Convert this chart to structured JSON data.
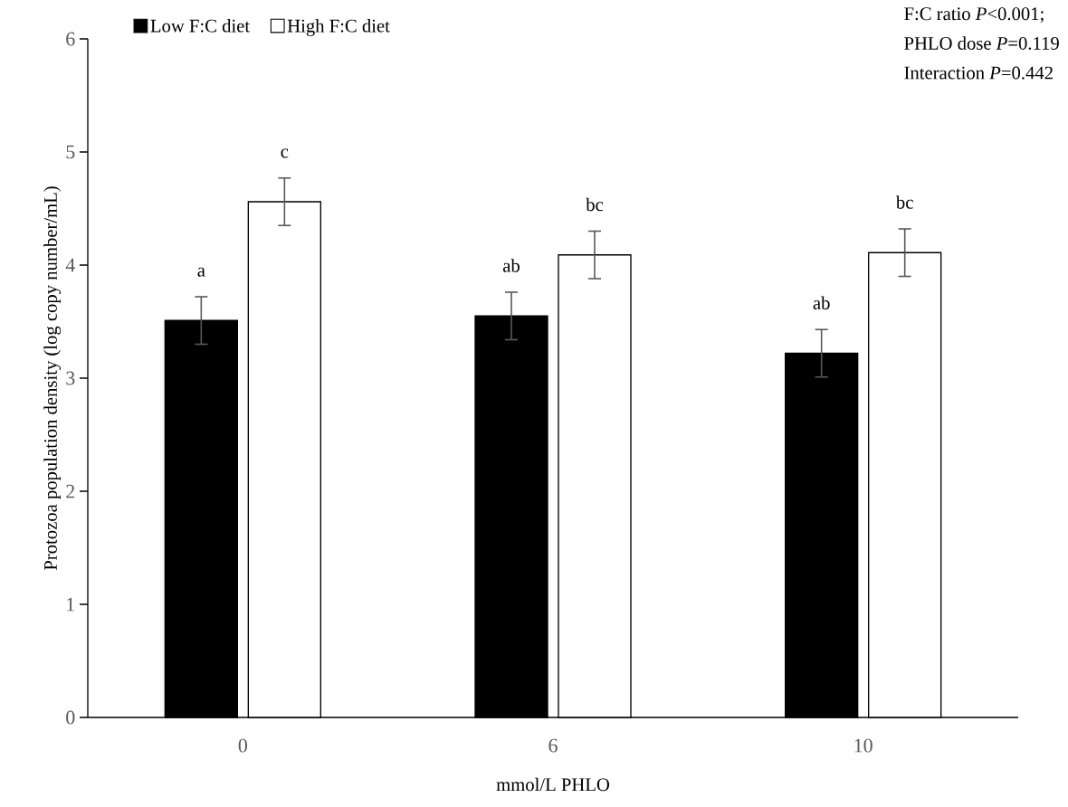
{
  "chart_data": {
    "type": "bar",
    "xlabel": "mmol/L PHLO",
    "ylabel": "Protozoa population density (log copy number/mL)",
    "categories": [
      "0",
      "6",
      "10"
    ],
    "series": [
      {
        "name": "Low F:C diet",
        "color": "#000000",
        "values": [
          3.51,
          3.55,
          3.22
        ],
        "errors": [
          0.21,
          0.21,
          0.21
        ],
        "value_labels": [
          "a",
          "ab",
          "ab"
        ]
      },
      {
        "name": "High F:C diet",
        "color": "#ffffff",
        "values": [
          4.56,
          4.09,
          4.11
        ],
        "errors": [
          0.21,
          0.21,
          0.21
        ],
        "value_labels": [
          "c",
          "bc",
          "bc"
        ]
      }
    ],
    "ylim": [
      0,
      6
    ],
    "yticks": [
      0,
      1,
      2,
      3,
      4,
      5,
      6
    ],
    "legend": "top left",
    "grid": false,
    "annotations": [
      "F:C ratio *P*<0.001;",
      "PHLO dose *P*=0.119",
      "Interaction *P*=0.442"
    ]
  }
}
